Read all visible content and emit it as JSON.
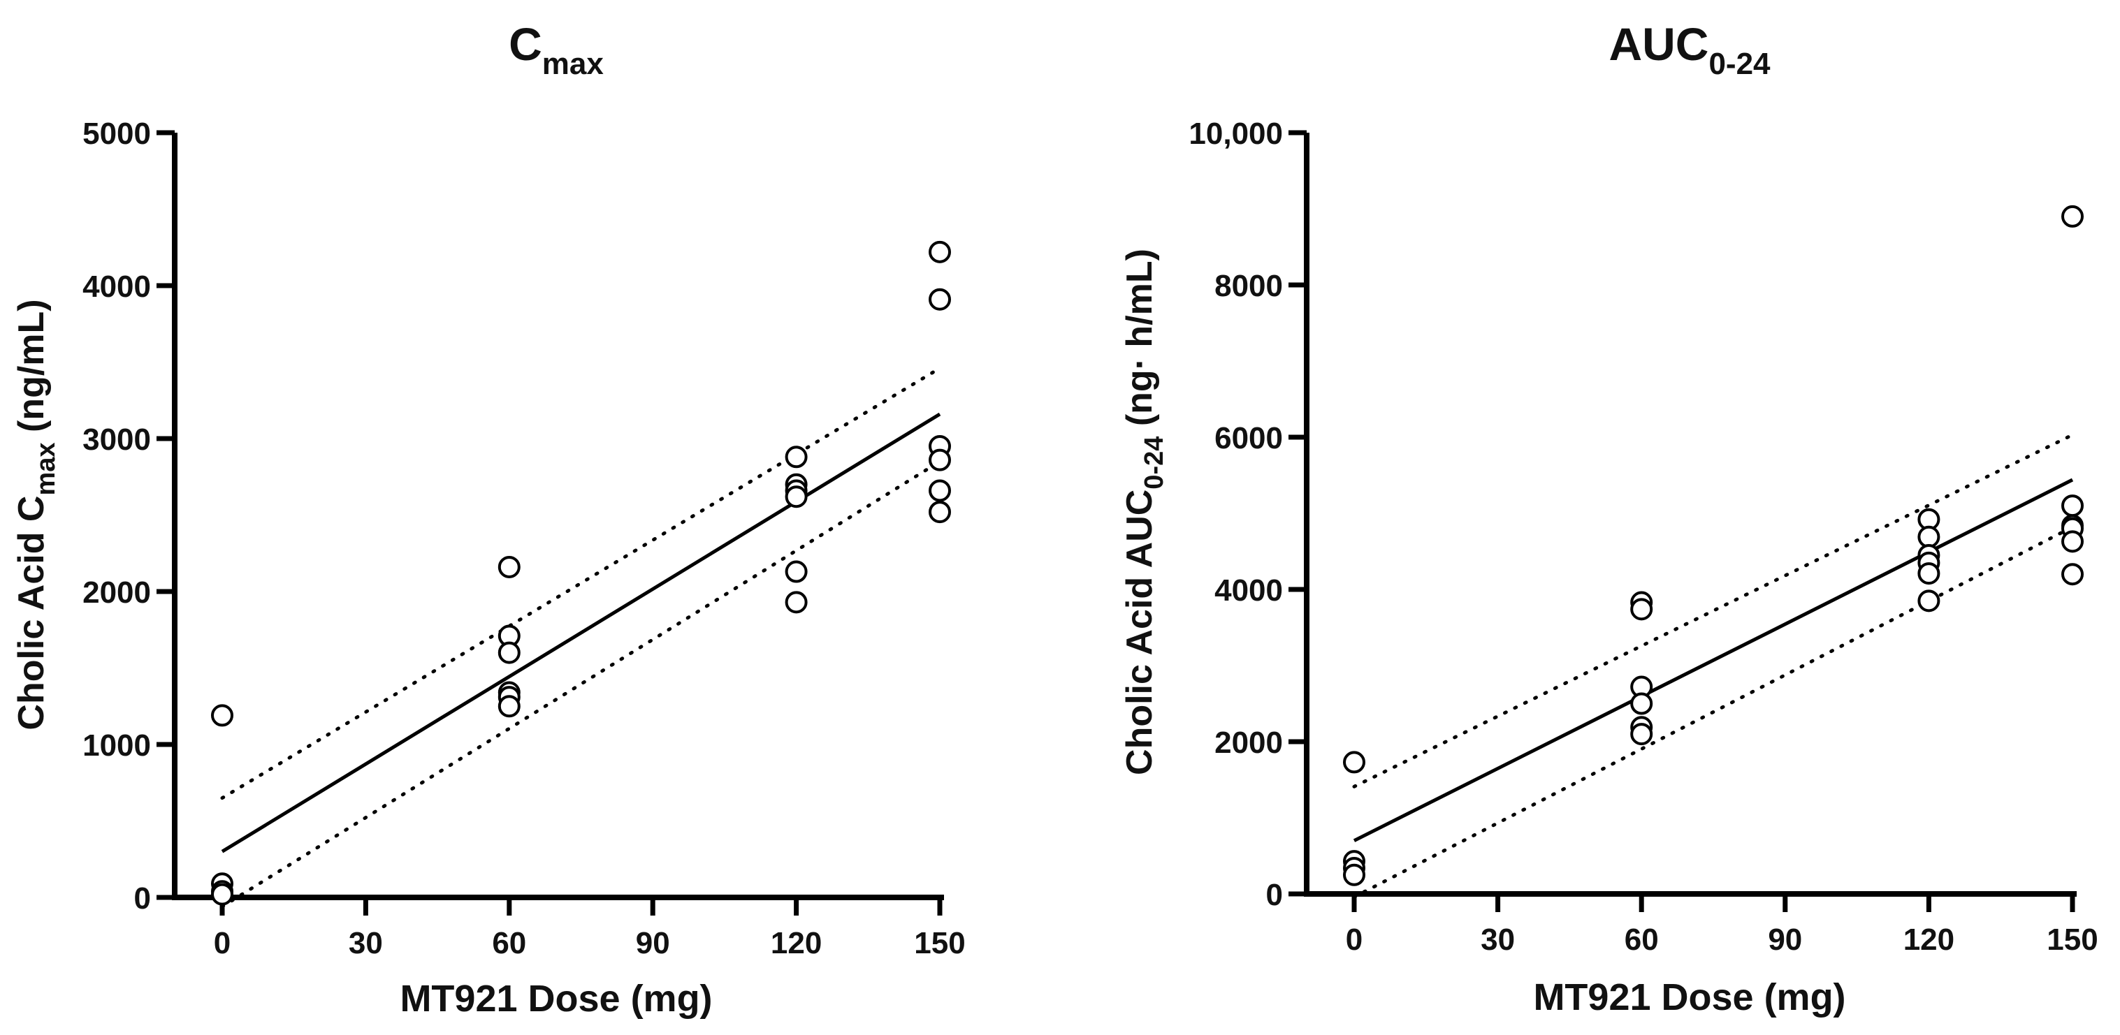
{
  "chart_data": [
    {
      "type": "scatter",
      "title": "C",
      "title_sub": "max",
      "xlabel": "MT921  Dose (mg)",
      "ylabel": "Cholic Acid C",
      "ylabel_sub": "max",
      "ylabel_suffix": " (ng/mL)",
      "xticks": [
        0,
        30,
        60,
        90,
        120,
        150
      ],
      "xtick_labels": [
        "0",
        "30",
        "60",
        "90",
        "120",
        "150"
      ],
      "yticks": [
        0,
        1000,
        2000,
        3000,
        4000,
        5000
      ],
      "ytick_labels": [
        "0",
        "1000",
        "2000",
        "3000",
        "4000",
        "5000"
      ],
      "xlim": [
        -10,
        150
      ],
      "ylim": [
        0,
        5000
      ],
      "points": [
        {
          "x": 0,
          "y": 1190
        },
        {
          "x": 0,
          "y": 90
        },
        {
          "x": 0,
          "y": 40
        },
        {
          "x": 0,
          "y": 20
        },
        {
          "x": 60,
          "y": 2160
        },
        {
          "x": 60,
          "y": 1710
        },
        {
          "x": 60,
          "y": 1600
        },
        {
          "x": 60,
          "y": 1340
        },
        {
          "x": 60,
          "y": 1310
        },
        {
          "x": 60,
          "y": 1250
        },
        {
          "x": 120,
          "y": 2880
        },
        {
          "x": 120,
          "y": 2700
        },
        {
          "x": 120,
          "y": 2660
        },
        {
          "x": 120,
          "y": 2620
        },
        {
          "x": 120,
          "y": 2130
        },
        {
          "x": 120,
          "y": 1930
        },
        {
          "x": 150,
          "y": 4220
        },
        {
          "x": 150,
          "y": 3910
        },
        {
          "x": 150,
          "y": 2950
        },
        {
          "x": 150,
          "y": 2860
        },
        {
          "x": 150,
          "y": 2660
        },
        {
          "x": 150,
          "y": 2520
        }
      ],
      "fit": {
        "x": [
          0,
          150
        ],
        "y": [
          300,
          3160
        ]
      },
      "ci_upper": {
        "x": [
          0,
          150
        ],
        "y": [
          650,
          3460
        ]
      },
      "ci_lower": {
        "x": [
          0,
          150
        ],
        "y": [
          -60,
          2850
        ]
      }
    },
    {
      "type": "scatter",
      "title": "AUC",
      "title_sub": "0-24",
      "xlabel": "MT921  Dose (mg)",
      "ylabel": "Cholic Acid AUC",
      "ylabel_sub": "0-24",
      "ylabel_suffix": " (ng· h/mL)",
      "xticks": [
        0,
        30,
        60,
        90,
        120,
        150
      ],
      "xtick_labels": [
        "0",
        "30",
        "60",
        "90",
        "120",
        "150"
      ],
      "yticks": [
        0,
        2000,
        4000,
        6000,
        8000,
        10000
      ],
      "ytick_labels": [
        "0",
        "2000",
        "4000",
        "6000",
        "8000",
        "10,000"
      ],
      "xlim": [
        -10,
        150
      ],
      "ylim": [
        0,
        10000
      ],
      "points": [
        {
          "x": 0,
          "y": 1730
        },
        {
          "x": 0,
          "y": 430
        },
        {
          "x": 0,
          "y": 340
        },
        {
          "x": 0,
          "y": 250
        },
        {
          "x": 60,
          "y": 3830
        },
        {
          "x": 60,
          "y": 3740
        },
        {
          "x": 60,
          "y": 2720
        },
        {
          "x": 60,
          "y": 2500
        },
        {
          "x": 60,
          "y": 2190
        },
        {
          "x": 60,
          "y": 2100
        },
        {
          "x": 120,
          "y": 4920
        },
        {
          "x": 120,
          "y": 4690
        },
        {
          "x": 120,
          "y": 4450
        },
        {
          "x": 120,
          "y": 4350
        },
        {
          "x": 120,
          "y": 4210
        },
        {
          "x": 120,
          "y": 3850
        },
        {
          "x": 150,
          "y": 8900
        },
        {
          "x": 150,
          "y": 5100
        },
        {
          "x": 150,
          "y": 4840
        },
        {
          "x": 150,
          "y": 4800
        },
        {
          "x": 150,
          "y": 4630
        },
        {
          "x": 150,
          "y": 4200
        }
      ],
      "fit": {
        "x": [
          0,
          150
        ],
        "y": [
          700,
          5440
        ]
      },
      "ci_upper": {
        "x": [
          0,
          150
        ],
        "y": [
          1410,
          6030
        ]
      },
      "ci_lower": {
        "x": [
          0,
          150
        ],
        "y": [
          -40,
          4820
        ]
      }
    }
  ]
}
